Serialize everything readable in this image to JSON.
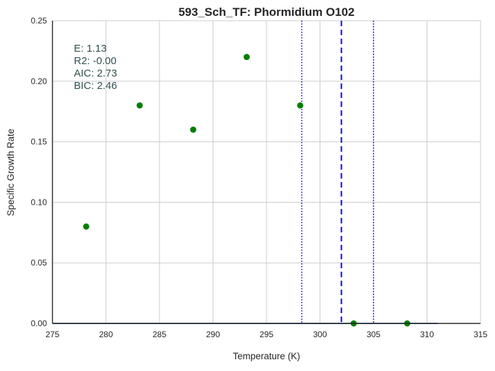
{
  "chart_data": {
    "type": "scatter",
    "title": "593_Sch_TF: Phormidium O102",
    "xlabel": "Temperature (K)",
    "ylabel": "Specific Growth Rate",
    "xlim": [
      275,
      315
    ],
    "ylim": [
      0,
      0.25
    ],
    "x_ticks": [
      275,
      280,
      285,
      290,
      295,
      300,
      305,
      310,
      315
    ],
    "x_tick_labels": [
      "275",
      "280",
      "285",
      "290",
      "295",
      "300",
      "305",
      "310",
      "315"
    ],
    "y_ticks": [
      0.0,
      0.05,
      0.1,
      0.15,
      0.2,
      0.25
    ],
    "y_tick_labels": [
      "0.00",
      "0.05",
      "0.10",
      "0.15",
      "0.20",
      "0.25"
    ],
    "grid": true,
    "series": [
      {
        "marker_color": "#007f00",
        "x": [
          278.15,
          283.15,
          288.15,
          293.15,
          298.15,
          303.15,
          308.15
        ],
        "y": [
          0.08,
          0.18,
          0.16,
          0.22,
          0.18,
          0.0,
          0.0
        ]
      }
    ],
    "fit_line": {
      "x": [
        275,
        311
      ],
      "y": [
        0.0,
        0.0
      ],
      "color": "#4c72b0"
    },
    "vertical_lines": [
      {
        "x": 302.0,
        "style": "dashed",
        "color": "#0000ff"
      },
      {
        "x": 298.3,
        "style": "dotted",
        "color": "#0000ff"
      },
      {
        "x": 305.0,
        "style": "dotted",
        "color": "#0000ff"
      }
    ],
    "annotations": [
      "E:  1.13",
      "R2:  -0.00",
      "AIC: 2.73",
      "BIC: 2.46"
    ]
  }
}
